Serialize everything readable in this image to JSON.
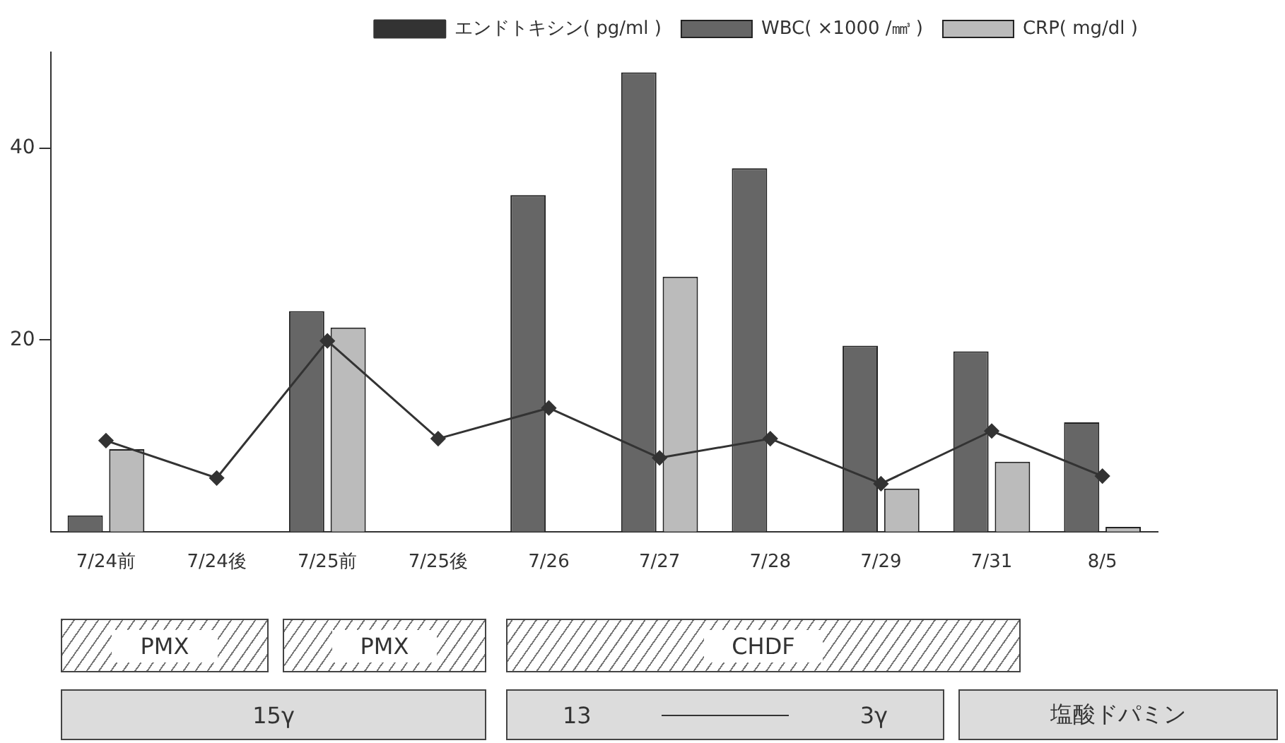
{
  "chart_data": {
    "type": "bar",
    "categories": [
      "7/24前",
      "7/24後",
      "7/25前",
      "7/25後",
      "7/26",
      "7/27",
      "7/28",
      "7/29",
      "7/31",
      "8/5"
    ],
    "series": [
      {
        "name": "WBC( ×1000 /㎣ )",
        "color": "#666666",
        "values": [
          1.7,
          null,
          23,
          null,
          35.1,
          47.9,
          37.9,
          19.4,
          18.8,
          11.4
        ]
      },
      {
        "name": "CRP( mg/dl )",
        "color": "#bbbbbb",
        "values": [
          8.6,
          null,
          21.3,
          null,
          null,
          26.6,
          null,
          4.5,
          7.3,
          0.5
        ]
      },
      {
        "name": "エンドトキシン( pg/ml )",
        "type": "line",
        "color": "#333333",
        "values": [
          9.5,
          5.6,
          19.9,
          9.7,
          12.9,
          7.7,
          9.7,
          5.0,
          10.5,
          5.8
        ]
      }
    ],
    "ylim": [
      0,
      50
    ],
    "yticks": [
      20,
      40
    ],
    "grid": false,
    "legend": "top right",
    "marker": "diamond",
    "line_style": "solid",
    "annotations": [
      "PMX",
      "PMX",
      "CHDF",
      "15γ",
      "13",
      "3γ",
      "塩酸ドパミン"
    ]
  }
}
